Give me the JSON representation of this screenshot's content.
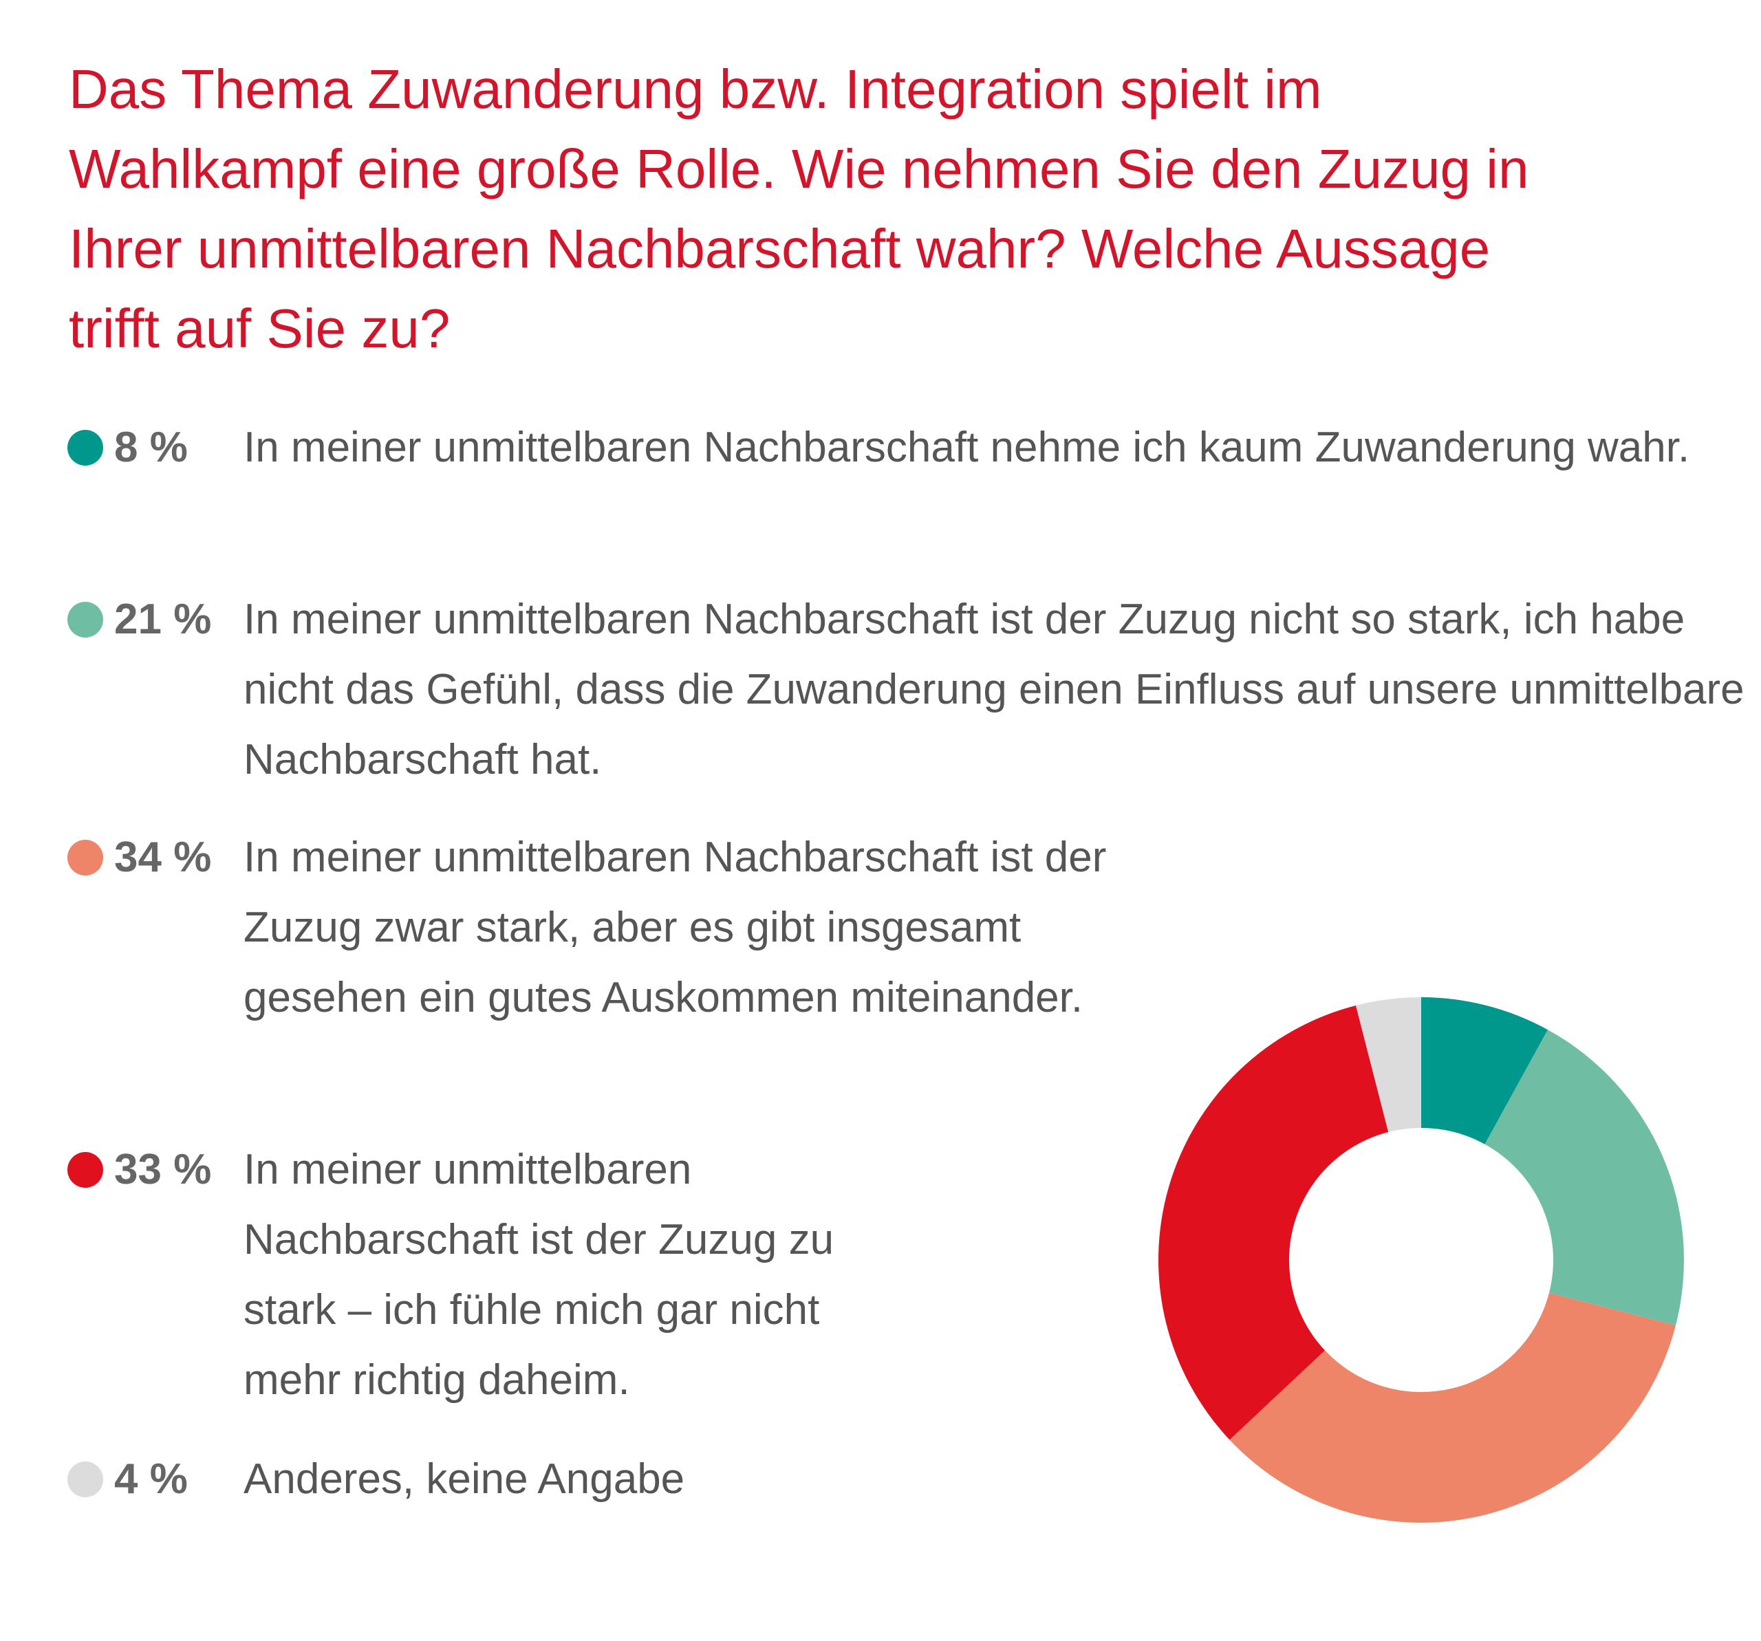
{
  "chart_data": {
    "type": "donut",
    "title": "Das Thema Zuwanderung bzw. Integration spielt im Wahlkampf eine große Rolle. Wie nehmen Sie den Zuzug in Ihrer unmittelbaren Nachbarschaft wahr? Welche Aussage trifft auf Sie zu?",
    "categories": [
      "In meiner unmittelbaren Nachbarschaft nehme ich kaum Zuwanderung wahr.",
      "In meiner unmittelbaren Nachbarschaft ist der Zuzug nicht so stark, ich habe nicht das Gefühl, dass die Zuwanderung einen Einfluss auf unsere unmittelbare Nachbarschaft hat.",
      "In meiner unmittelbaren Nachbarschaft ist der Zuzug zwar stark, aber es gibt insgesamt gesehen ein gutes Auskommen miteinander.",
      "In meiner unmittelbaren Nachbarschaft ist der Zuzug zu stark – ich fühle mich gar nicht mehr richtig daheim.",
      "Anderes, keine Angabe"
    ],
    "values": [
      8,
      21,
      34,
      33,
      4
    ],
    "value_labels": [
      "8 %",
      "21 %",
      "34 %",
      "33 %",
      "4 %"
    ],
    "colors": [
      "#00988c",
      "#6fbea4",
      "#ee8568",
      "#e1101f",
      "#dcdcdc"
    ]
  }
}
